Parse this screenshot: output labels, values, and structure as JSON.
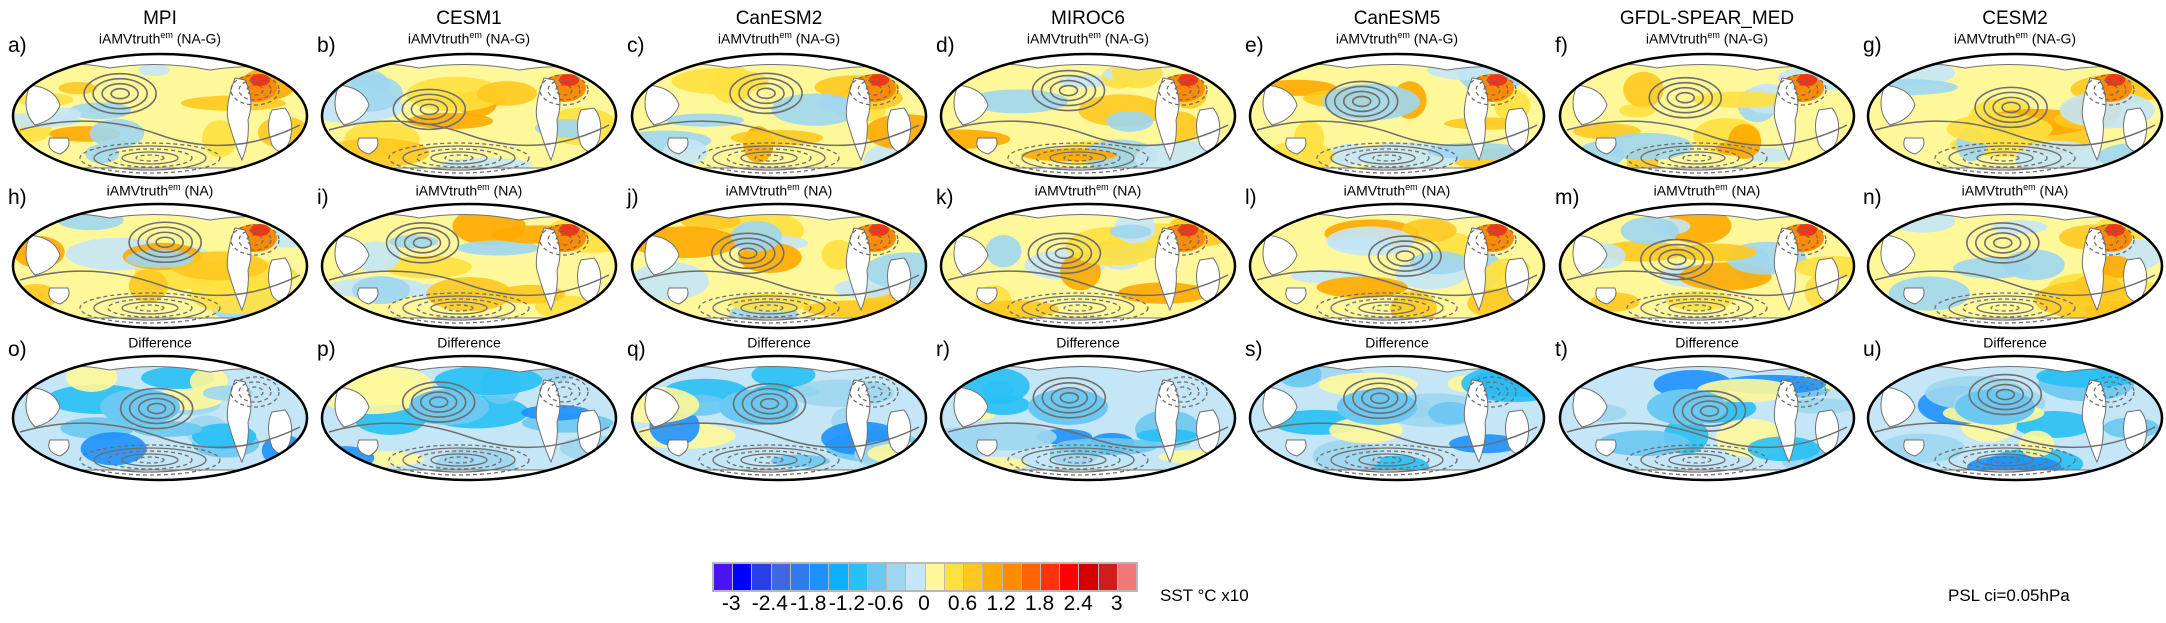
{
  "columns": [
    {
      "model": "MPI",
      "letters": [
        "a)",
        "h)",
        "o)"
      ]
    },
    {
      "model": "CESM1",
      "letters": [
        "b)",
        "i)",
        "p)"
      ]
    },
    {
      "model": "CanESM2",
      "letters": [
        "c)",
        "j)",
        "q)"
      ]
    },
    {
      "model": "MIROC6",
      "letters": [
        "d)",
        "k)",
        "r)"
      ]
    },
    {
      "model": "CanESM5",
      "letters": [
        "e)",
        "l)",
        "s)"
      ]
    },
    {
      "model": "GFDL-SPEAR_MED",
      "letters": [
        "f)",
        "m)",
        "t)"
      ]
    },
    {
      "model": "CESM2",
      "letters": [
        "g)",
        "n)",
        "u)"
      ]
    }
  ],
  "rows": [
    {
      "title": "iAMVtruth",
      "sup": "em",
      "suffix": " (NA-G)"
    },
    {
      "title": "iAMVtruth",
      "sup": "em",
      "suffix": " (NA)"
    },
    {
      "title": "Difference",
      "sup": "",
      "suffix": ""
    }
  ],
  "colorbar": {
    "colors": [
      "#4b14f5",
      "#0000ff",
      "#2a3ee8",
      "#3f68e0",
      "#2f7bec",
      "#1e90ff",
      "#0cb0ff",
      "#28c0f5",
      "#6ac8f2",
      "#9ed6f0",
      "#c4e6f6",
      "#fff89a",
      "#ffe040",
      "#ffc820",
      "#ffaa00",
      "#ff8c00",
      "#ff6400",
      "#ff3210",
      "#ff0000",
      "#d20000",
      "#d01c1c",
      "#f07878"
    ],
    "ticks": [
      "-3",
      "-2.4",
      "-1.8",
      "-1.2",
      "-0.6",
      "0",
      "0.6",
      "1.2",
      "1.8",
      "2.4",
      "3"
    ],
    "label": "SST °C x10"
  },
  "psl_note": "PSL ci=0.05hPa"
}
